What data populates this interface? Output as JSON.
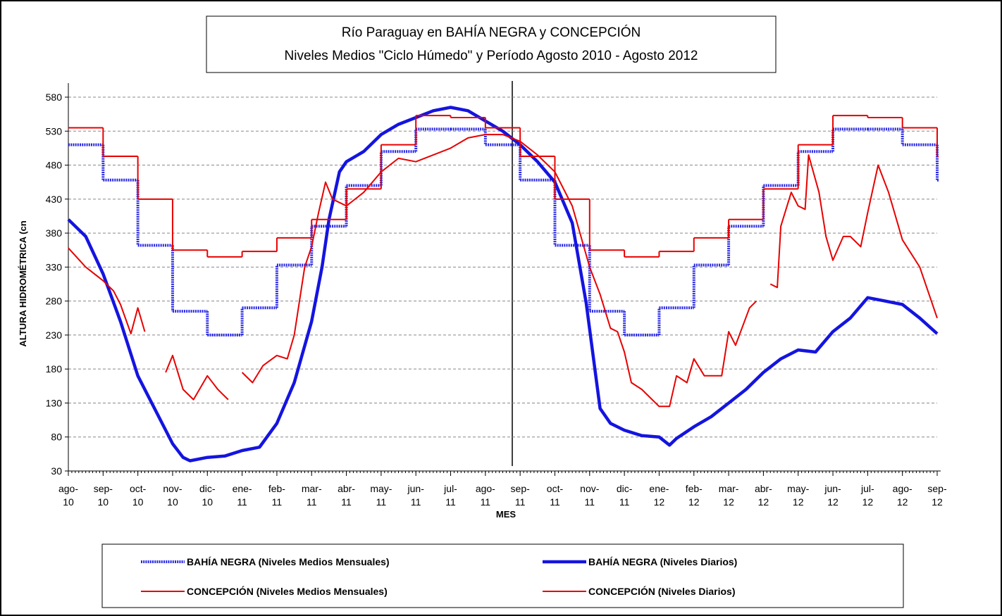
{
  "chart_data": {
    "type": "line",
    "title": "Río Paraguay en BAHÍA NEGRA y CONCEPCIÓN",
    "subtitle": "Niveles Medios \"Ciclo Húmedo\" y Período Agosto 2010 - Agosto 2012",
    "y_label": "ALTURA HIDROMÉTRICA (cn",
    "x_label": "MES",
    "categories": [
      "ago-10",
      "sep-10",
      "oct-10",
      "nov-10",
      "dic-10",
      "ene-11",
      "feb-11",
      "mar-11",
      "abr-11",
      "may-11",
      "jun-11",
      "jul-11",
      "ago-11",
      "sep-11",
      "oct-11",
      "nov-11",
      "dic-11",
      "ene-12",
      "feb-12",
      "mar-12",
      "abr-12",
      "may-12",
      "jun-12",
      "jul-12",
      "ago-12",
      "sep-12"
    ],
    "ylim": [
      30,
      580
    ],
    "yticks": [
      30,
      80,
      130,
      180,
      230,
      280,
      330,
      380,
      430,
      480,
      530,
      580
    ],
    "grid": true,
    "legend": "bottom",
    "series": [
      {
        "name": "BAHÍA NEGRA (Niveles Medios Mensuales)",
        "color": "#2a2ae8",
        "step": true,
        "line_style": "dotted",
        "values": [
          510,
          458,
          362,
          265,
          230,
          270,
          333,
          390,
          450,
          500,
          533,
          533,
          510,
          458,
          362,
          265,
          230,
          270,
          333,
          390,
          450,
          500,
          533,
          533,
          510,
          458
        ]
      },
      {
        "name": "BAHÍA NEGRA (Niveles Diarios)",
        "color": "#1414e0",
        "line_style": "solid",
        "x": [
          0,
          0.5,
          1,
          1.5,
          2,
          2.5,
          3,
          3.3,
          3.5,
          4,
          4.5,
          5,
          5.5,
          6,
          6.5,
          7,
          7.3,
          7.5,
          7.8,
          8,
          8.5,
          9,
          9.5,
          10,
          10.5,
          11,
          11.5,
          12,
          12.5,
          13,
          13.5,
          14,
          14.5,
          14.9,
          15.3,
          15.6,
          16,
          16.5,
          17,
          17.3,
          17.5,
          18,
          18.5,
          19,
          19.5,
          20,
          20.5,
          21,
          21.5,
          22,
          22.5,
          23,
          23.5,
          24,
          24.5,
          25
        ],
        "values": [
          400,
          375,
          320,
          250,
          170,
          120,
          70,
          50,
          45,
          50,
          52,
          60,
          65,
          100,
          160,
          250,
          330,
          400,
          470,
          485,
          500,
          525,
          540,
          550,
          560,
          565,
          560,
          545,
          530,
          510,
          485,
          455,
          395,
          277,
          122,
          100,
          90,
          82,
          80,
          68,
          78,
          95,
          110,
          130,
          150,
          175,
          195,
          208,
          205,
          235,
          255,
          285,
          280,
          275,
          255,
          232
        ]
      },
      {
        "name": "CONCEPCIÓN (Niveles Medios Mensuales)",
        "color": "#e80000",
        "step": true,
        "line_style": "solid",
        "values": [
          535,
          493,
          430,
          355,
          345,
          353,
          373,
          400,
          445,
          510,
          553,
          550,
          535,
          493,
          430,
          355,
          345,
          353,
          373,
          400,
          445,
          510,
          553,
          550,
          535,
          493
        ]
      },
      {
        "name": "CONCEPCIÓN (Niveles Diarios)",
        "color": "#e80000",
        "line_style": "solid",
        "x": [
          0,
          0.5,
          1,
          1.3,
          1.5,
          1.8,
          2,
          2.2,
          2.5,
          2.8,
          3,
          3.3,
          3.6,
          4,
          4.3,
          4.5,
          4.6,
          4.8,
          5,
          5.3,
          5.6,
          6,
          6.3,
          6.5,
          6.8,
          7,
          7.2,
          7.4,
          7.6,
          8,
          8.5,
          9,
          9.5,
          10,
          10.5,
          11,
          11.5,
          12,
          12.5,
          13,
          13.5,
          14,
          14.5,
          15,
          15.3,
          15.6,
          15.8,
          16,
          16.2,
          16.5,
          17,
          17.3,
          17.5,
          17.8,
          18,
          18.3,
          18.8,
          19,
          19.2,
          19.6,
          19.8,
          20,
          20.2,
          20.4,
          20.5,
          20.8,
          21,
          21.2,
          21.3,
          21.6,
          21.8,
          22,
          22.3,
          22.5,
          22.8,
          23,
          23.3,
          23.6,
          24,
          24.5,
          25
        ],
        "values": [
          358,
          330,
          310,
          295,
          275,
          232,
          270,
          235,
          null,
          175,
          200,
          150,
          135,
          170,
          150,
          140,
          135,
          null,
          175,
          160,
          185,
          200,
          195,
          230,
          330,
          360,
          410,
          455,
          430,
          420,
          440,
          470,
          490,
          485,
          495,
          505,
          520,
          525,
          525,
          515,
          495,
          470,
          420,
          330,
          290,
          240,
          235,
          205,
          160,
          150,
          125,
          125,
          170,
          160,
          195,
          170,
          170,
          235,
          215,
          270,
          280,
          null,
          305,
          300,
          390,
          440,
          420,
          415,
          495,
          440,
          375,
          340,
          375,
          375,
          360,
          410,
          480,
          440,
          370,
          330,
          255
        ]
      }
    ]
  }
}
